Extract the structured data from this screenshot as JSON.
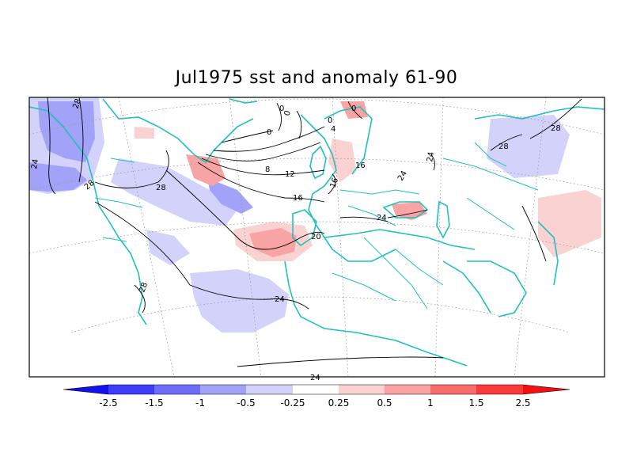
{
  "title": "Jul1975 sst and anomaly 61-90",
  "colors": {
    "neg_strong": "#1010f0",
    "neg_25": "#3d3df8",
    "neg_15": "#6d6dfa",
    "neg_1": "#a2a2f8",
    "neg_05": "#d2d2fa",
    "pos_05": "#fad2d2",
    "pos_1": "#f8a4a4",
    "pos_15": "#f86c6c",
    "pos_25": "#fa3a3a",
    "pos_strong": "#f01010",
    "coast": "#20c0c0",
    "contour": "#000000"
  },
  "colorbar": {
    "labels": [
      "-2.5",
      "-1.5",
      "-1",
      "-0.5",
      "-0.25",
      "0.25",
      "0.5",
      "1",
      "1.5",
      "2.5"
    ]
  },
  "contour_labels": {
    "c28_ne_atl": "28",
    "c24_gulf": "24",
    "c28_west": "28",
    "c28_mid": "28",
    "c28_sw": "28",
    "c20": "20",
    "c24_africa": "24",
    "c24_bottom": "24",
    "c16": "16",
    "c12": "12",
    "c8": "8",
    "c4": "4",
    "c0_a": "0",
    "c0_b": "0",
    "c0_c": "0",
    "c0_d": "0",
    "c0_e": "0",
    "c16_baltic": "16",
    "c16_east": "16",
    "c24_black": "24",
    "c24_med": "24",
    "c24_caspian": "24",
    "c28_persian": "28",
    "c28_east": "28"
  }
}
